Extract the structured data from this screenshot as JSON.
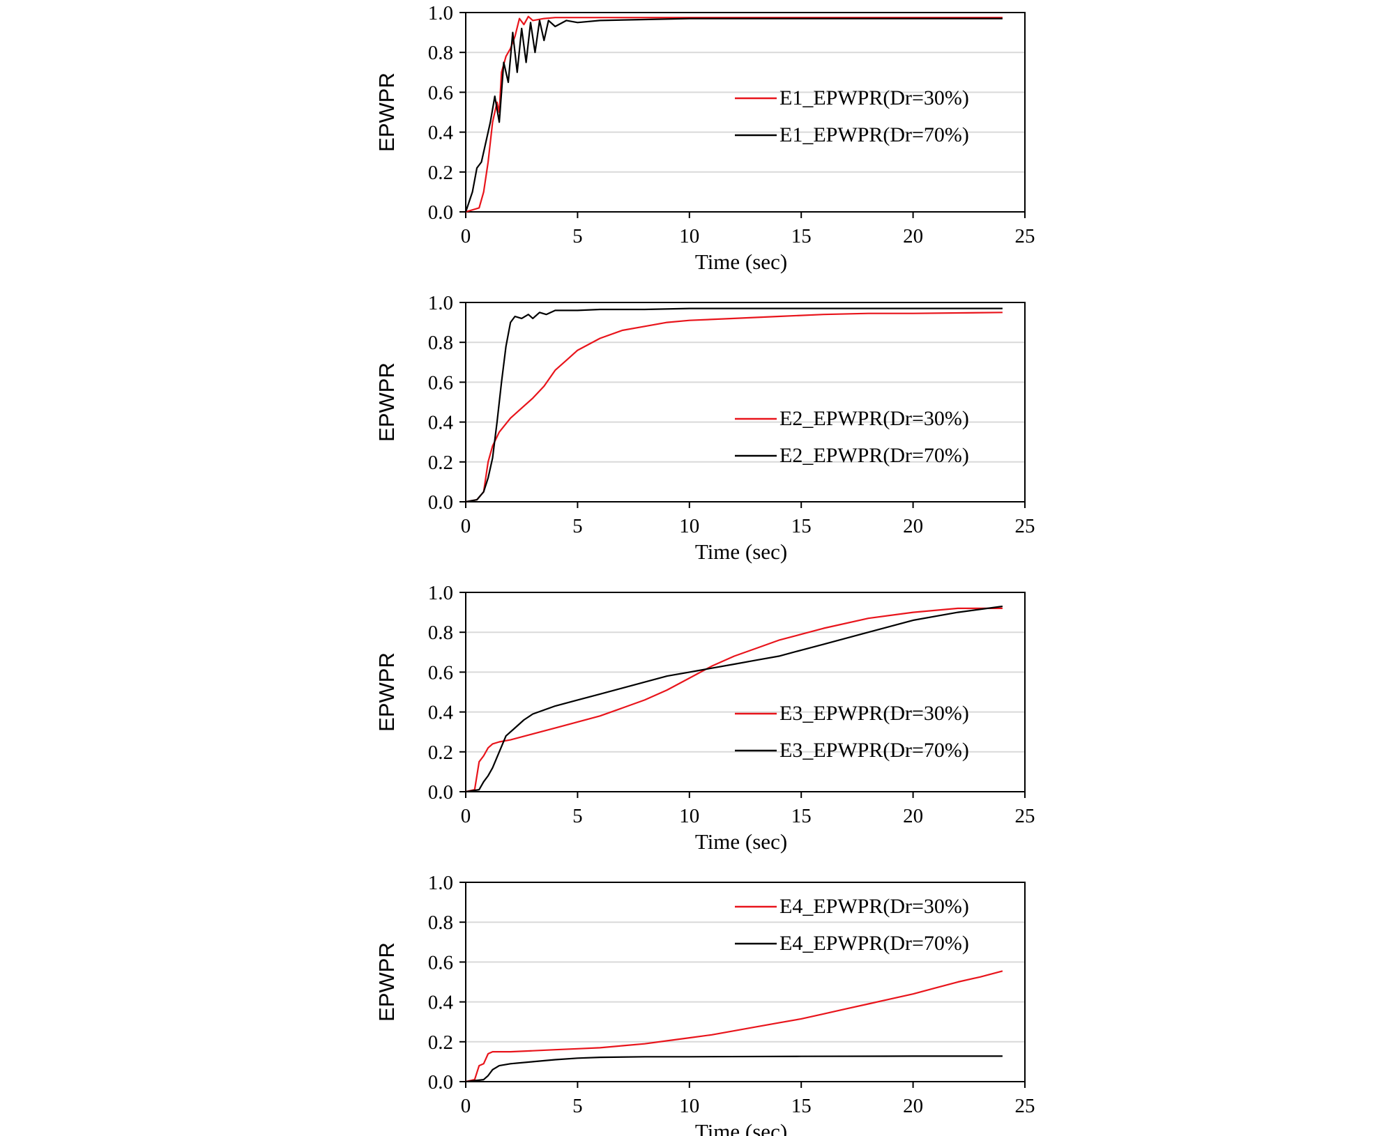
{
  "chart_data": [
    {
      "type": "line",
      "xlabel": "Time (sec)",
      "ylabel": "EPWPR",
      "xlim": [
        0,
        25
      ],
      "ylim": [
        0,
        1
      ],
      "xticks": [
        0,
        5,
        10,
        15,
        20,
        25
      ],
      "yticks": [
        0.0,
        0.2,
        0.4,
        0.6,
        0.8,
        1.0
      ],
      "ytick_labels": [
        "0.0",
        "0.2",
        "0.4",
        "0.6",
        "0.8",
        "1.0"
      ],
      "grid": "horizontal",
      "legend_position": "center-right",
      "series": [
        {
          "name": "E1_EPWPR(Dr=30%)",
          "color": "#e8141b",
          "x": [
            0,
            0.6,
            0.8,
            1.0,
            1.2,
            1.4,
            1.5,
            1.6,
            1.8,
            2.0,
            2.2,
            2.4,
            2.6,
            2.8,
            3.0,
            3.5,
            4,
            5,
            6,
            8,
            10,
            15,
            20,
            24
          ],
          "y": [
            0,
            0.02,
            0.1,
            0.25,
            0.45,
            0.55,
            0.5,
            0.7,
            0.78,
            0.82,
            0.88,
            0.97,
            0.94,
            0.98,
            0.96,
            0.97,
            0.975,
            0.975,
            0.975,
            0.975,
            0.975,
            0.975,
            0.975,
            0.975
          ]
        },
        {
          "name": "E1_EPWPR(Dr=70%)",
          "color": "#000000",
          "x": [
            0,
            0.3,
            0.5,
            0.7,
            0.9,
            1.1,
            1.3,
            1.5,
            1.7,
            1.9,
            2.1,
            2.3,
            2.5,
            2.7,
            2.9,
            3.1,
            3.3,
            3.5,
            3.7,
            4,
            4.5,
            5,
            6,
            8,
            10,
            15,
            20,
            24
          ],
          "y": [
            0,
            0.1,
            0.22,
            0.25,
            0.35,
            0.45,
            0.58,
            0.45,
            0.75,
            0.65,
            0.9,
            0.7,
            0.92,
            0.75,
            0.95,
            0.8,
            0.96,
            0.86,
            0.96,
            0.93,
            0.96,
            0.95,
            0.96,
            0.965,
            0.97,
            0.97,
            0.97,
            0.97
          ]
        },
        {
          "name": "",
          "color": "#000000",
          "x": [],
          "y": []
        }
      ],
      "legend": [
        "E1_EPWPR(Dr=30%)",
        "E1_EPWPR(Dr=70%)"
      ]
    },
    {
      "type": "line",
      "xlabel": "Time (sec)",
      "ylabel": "EPWPR",
      "xlim": [
        0,
        25
      ],
      "ylim": [
        0,
        1
      ],
      "xticks": [
        0,
        5,
        10,
        15,
        20,
        25
      ],
      "yticks": [
        0.0,
        0.2,
        0.4,
        0.6,
        0.8,
        1.0
      ],
      "ytick_labels": [
        "0.0",
        "0.2",
        "0.4",
        "0.6",
        "0.8",
        "1.0"
      ],
      "grid": "horizontal",
      "legend_position": "center-right",
      "series": [
        {
          "name": "E2_EPWPR(Dr=30%)",
          "color": "#e8141b",
          "x": [
            0,
            0.5,
            0.8,
            1.0,
            1.2,
            1.5,
            2,
            2.5,
            3,
            3.5,
            4,
            4.5,
            5,
            6,
            7,
            8,
            9,
            10,
            12,
            14,
            16,
            18,
            20,
            24
          ],
          "y": [
            0,
            0.01,
            0.05,
            0.2,
            0.28,
            0.35,
            0.42,
            0.47,
            0.52,
            0.58,
            0.66,
            0.71,
            0.76,
            0.82,
            0.86,
            0.88,
            0.9,
            0.91,
            0.92,
            0.93,
            0.94,
            0.945,
            0.945,
            0.95
          ]
        },
        {
          "name": "E2_EPWPR(Dr=70%)",
          "color": "#000000",
          "x": [
            0,
            0.5,
            0.8,
            1.0,
            1.2,
            1.4,
            1.6,
            1.8,
            2.0,
            2.2,
            2.5,
            2.8,
            3.0,
            3.3,
            3.6,
            4,
            5,
            6,
            8,
            10,
            15,
            20,
            24
          ],
          "y": [
            0,
            0.01,
            0.05,
            0.12,
            0.22,
            0.4,
            0.6,
            0.78,
            0.9,
            0.93,
            0.92,
            0.94,
            0.92,
            0.95,
            0.94,
            0.96,
            0.96,
            0.965,
            0.965,
            0.97,
            0.97,
            0.97,
            0.97
          ]
        }
      ],
      "legend": [
        "E2_EPWPR(Dr=30%)",
        "E2_EPWPR(Dr=70%)"
      ]
    },
    {
      "type": "line",
      "xlabel": "Time (sec)",
      "ylabel": "EPWPR",
      "xlim": [
        0,
        25
      ],
      "ylim": [
        0,
        1
      ],
      "xticks": [
        0,
        5,
        10,
        15,
        20,
        25
      ],
      "yticks": [
        0.0,
        0.2,
        0.4,
        0.6,
        0.8,
        1.0
      ],
      "ytick_labels": [
        "0.0",
        "0.2",
        "0.4",
        "0.6",
        "0.8",
        "1.0"
      ],
      "grid": "horizontal",
      "legend_position": "center-right",
      "series": [
        {
          "name": "E3_EPWPR(Dr=30%)",
          "color": "#e8141b",
          "x": [
            0,
            0.4,
            0.6,
            0.8,
            1.0,
            1.2,
            1.5,
            2,
            3,
            4,
            5,
            6,
            7,
            8,
            9,
            10,
            11,
            12,
            13,
            14,
            15,
            16,
            18,
            20,
            22,
            24
          ],
          "y": [
            0,
            0.01,
            0.15,
            0.18,
            0.22,
            0.24,
            0.25,
            0.26,
            0.29,
            0.32,
            0.35,
            0.38,
            0.42,
            0.46,
            0.51,
            0.57,
            0.63,
            0.68,
            0.72,
            0.76,
            0.79,
            0.82,
            0.87,
            0.9,
            0.92,
            0.92
          ]
        },
        {
          "name": "E3_EPWPR(Dr=70%)",
          "color": "#000000",
          "x": [
            0,
            0.6,
            0.8,
            1.0,
            1.2,
            1.5,
            1.8,
            2.2,
            2.6,
            3,
            4,
            5,
            6,
            7,
            8,
            9,
            10,
            11,
            12,
            13,
            14,
            15,
            16,
            18,
            20,
            22,
            24
          ],
          "y": [
            0,
            0.01,
            0.05,
            0.08,
            0.12,
            0.2,
            0.28,
            0.32,
            0.36,
            0.39,
            0.43,
            0.46,
            0.49,
            0.52,
            0.55,
            0.58,
            0.6,
            0.62,
            0.64,
            0.66,
            0.68,
            0.71,
            0.74,
            0.8,
            0.86,
            0.9,
            0.93
          ]
        }
      ],
      "legend": [
        "E3_EPWPR(Dr=30%)",
        "E3_EPWPR(Dr=70%)"
      ]
    },
    {
      "type": "line",
      "xlabel": "Time (sec)",
      "ylabel": "EPWPR",
      "xlim": [
        0,
        25
      ],
      "ylim": [
        0,
        1
      ],
      "xticks": [
        0,
        5,
        10,
        15,
        20,
        25
      ],
      "yticks": [
        0.0,
        0.2,
        0.4,
        0.6,
        0.8,
        1.0
      ],
      "ytick_labels": [
        "0.0",
        "0.2",
        "0.4",
        "0.6",
        "0.8",
        "1.0"
      ],
      "grid": "horizontal",
      "legend_position": "top-right",
      "series": [
        {
          "name": "E4_EPWPR(Dr=30%)",
          "color": "#e8141b",
          "x": [
            0,
            0.4,
            0.6,
            0.8,
            1.0,
            1.2,
            2,
            3,
            4,
            5,
            6,
            7,
            8,
            9,
            10,
            11,
            12,
            13,
            14,
            15,
            16,
            17,
            18,
            19,
            20,
            21,
            22,
            23,
            24
          ],
          "y": [
            0,
            0.01,
            0.08,
            0.09,
            0.14,
            0.15,
            0.15,
            0.155,
            0.16,
            0.165,
            0.17,
            0.18,
            0.19,
            0.205,
            0.22,
            0.235,
            0.255,
            0.275,
            0.295,
            0.315,
            0.34,
            0.365,
            0.39,
            0.415,
            0.44,
            0.47,
            0.5,
            0.525,
            0.555
          ]
        },
        {
          "name": "E4_EPWPR(Dr=70%)",
          "color": "#000000",
          "x": [
            0,
            0.8,
            1.0,
            1.2,
            1.5,
            2,
            3,
            4,
            5,
            6,
            8,
            10,
            15,
            20,
            24
          ],
          "y": [
            0,
            0.01,
            0.03,
            0.06,
            0.08,
            0.09,
            0.1,
            0.11,
            0.118,
            0.122,
            0.125,
            0.125,
            0.127,
            0.128,
            0.128
          ]
        }
      ],
      "legend": [
        "E4_EPWPR(Dr=30%)",
        "E4_EPWPR(Dr=70%)"
      ]
    }
  ]
}
